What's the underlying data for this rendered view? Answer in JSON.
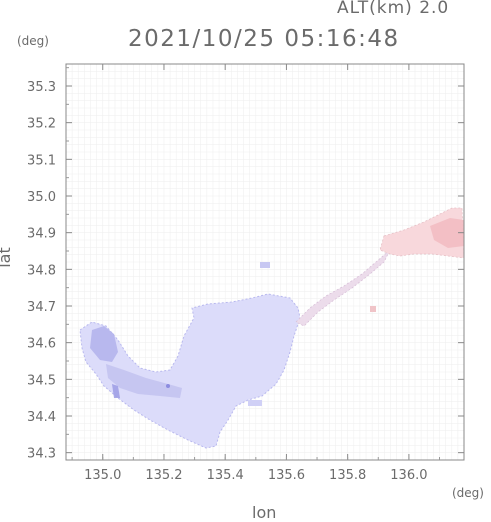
{
  "header": {
    "altitude_label": "ALT(km)  2.0",
    "datetime": "2021/10/25 05:16:48"
  },
  "axes": {
    "x_label": "lon",
    "y_label": "lat",
    "x_unit": "(deg)",
    "y_unit": "(deg)"
  },
  "chart_data": {
    "type": "heatmap",
    "xlabel": "lon",
    "ylabel": "lat",
    "xlim": [
      134.88,
      136.18
    ],
    "ylim": [
      34.28,
      35.36
    ],
    "x_ticks": [
      135.0,
      135.2,
      135.4,
      135.6,
      135.8,
      136.0
    ],
    "x_tick_labels": [
      "135.0",
      "135.2",
      "135.4",
      "135.6",
      "135.8",
      "136.0"
    ],
    "y_ticks": [
      34.3,
      34.4,
      34.5,
      34.6,
      34.7,
      34.8,
      34.9,
      35.0,
      35.1,
      35.2,
      35.3
    ],
    "y_tick_labels": [
      "34.3",
      "34.4",
      "34.5",
      "34.6",
      "34.7",
      "34.8",
      "34.9",
      "35.0",
      "35.1",
      "35.2",
      "35.3"
    ],
    "colors": {
      "blue_main": "#dcdcfa",
      "blue_mid": "#c8c8f2",
      "blue_dark": "#8c8ce0",
      "pink": "#f8d8dc",
      "red_light": "#f4c4c8"
    }
  }
}
